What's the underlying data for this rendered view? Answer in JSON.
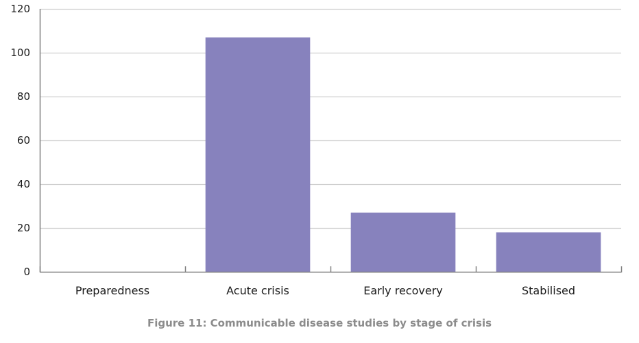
{
  "chart_data": {
    "type": "bar",
    "title": "Figure 11: Communicable disease studies by stage of crisis",
    "xlabel": "",
    "ylabel": "",
    "categories": [
      "Preparedness",
      "Acute crisis",
      "Early recovery",
      "Stabilised"
    ],
    "values": [
      0,
      107,
      27,
      18
    ],
    "ylim": [
      0,
      120
    ],
    "yticks": [
      0,
      20,
      40,
      60,
      80,
      100,
      120
    ],
    "grid": true,
    "legend": "none",
    "bar_color": "#8782bd",
    "grid_color": "#cfcfcf",
    "axis_color": "#808080"
  }
}
